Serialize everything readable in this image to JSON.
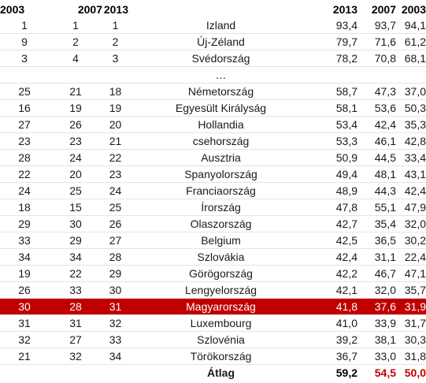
{
  "header": {
    "rank_2003": "2003",
    "rank_2007": "2007",
    "rank_2013": "2013",
    "value_2013": "2013",
    "value_2007": "2007",
    "value_2003": "2003"
  },
  "rows": [
    {
      "r2003": "1",
      "r2007": "1",
      "r2013": "1",
      "country": "Izland",
      "v2013": "93,4",
      "v2007": "93,7",
      "v2003": "94,1"
    },
    {
      "r2003": "9",
      "r2007": "2",
      "r2013": "2",
      "country": "Új-Zéland",
      "v2013": "79,7",
      "v2007": "71,6",
      "v2003": "61,2"
    },
    {
      "r2003": "3",
      "r2007": "4",
      "r2013": "3",
      "country": "Svédország",
      "v2013": "78,2",
      "v2007": "70,8",
      "v2003": "68,1"
    },
    {
      "r2003": "25",
      "r2007": "21",
      "r2013": "18",
      "country": "Németország",
      "v2013": "58,7",
      "v2007": "47,3",
      "v2003": "37,0"
    },
    {
      "r2003": "16",
      "r2007": "19",
      "r2013": "19",
      "country": "Egyesült Királyság",
      "v2013": "58,1",
      "v2007": "53,6",
      "v2003": "50,3"
    },
    {
      "r2003": "27",
      "r2007": "26",
      "r2013": "20",
      "country": "Hollandia",
      "v2013": "53,4",
      "v2007": "42,4",
      "v2003": "35,3"
    },
    {
      "r2003": "23",
      "r2007": "23",
      "r2013": "21",
      "country": "csehország",
      "v2013": "53,3",
      "v2007": "46,1",
      "v2003": "42,8"
    },
    {
      "r2003": "28",
      "r2007": "24",
      "r2013": "22",
      "country": "Ausztria",
      "v2013": "50,9",
      "v2007": "44,5",
      "v2003": "33,4"
    },
    {
      "r2003": "22",
      "r2007": "20",
      "r2013": "23",
      "country": "Spanyolország",
      "v2013": "49,4",
      "v2007": "48,1",
      "v2003": "43,1"
    },
    {
      "r2003": "24",
      "r2007": "25",
      "r2013": "24",
      "country": "Franciaország",
      "v2013": "48,9",
      "v2007": "44,3",
      "v2003": "42,4"
    },
    {
      "r2003": "18",
      "r2007": "15",
      "r2013": "25",
      "country": "Írország",
      "v2013": "47,8",
      "v2007": "55,1",
      "v2003": "47,9"
    },
    {
      "r2003": "29",
      "r2007": "30",
      "r2013": "26",
      "country": "Olaszország",
      "v2013": "42,7",
      "v2007": "35,4",
      "v2003": "32,0"
    },
    {
      "r2003": "33",
      "r2007": "29",
      "r2013": "27",
      "country": "Belgium",
      "v2013": "42,5",
      "v2007": "36,5",
      "v2003": "30,2"
    },
    {
      "r2003": "34",
      "r2007": "34",
      "r2013": "28",
      "country": "Szlovákia",
      "v2013": "42,4",
      "v2007": "31,1",
      "v2003": "22,4"
    },
    {
      "r2003": "19",
      "r2007": "22",
      "r2013": "29",
      "country": "Görögország",
      "v2013": "42,2",
      "v2007": "46,7",
      "v2003": "47,1"
    },
    {
      "r2003": "26",
      "r2007": "33",
      "r2013": "30",
      "country": "Lengyelország",
      "v2013": "42,1",
      "v2007": "32,0",
      "v2003": "35,7"
    },
    {
      "r2003": "30",
      "r2007": "28",
      "r2013": "31",
      "country": "Magyarország",
      "v2013": "41,8",
      "v2007": "37,6",
      "v2003": "31,9"
    },
    {
      "r2003": "31",
      "r2007": "31",
      "r2013": "32",
      "country": "Luxembourg",
      "v2013": "41,0",
      "v2007": "33,9",
      "v2003": "31,7"
    },
    {
      "r2003": "32",
      "r2007": "27",
      "r2013": "33",
      "country": "Szlovénia",
      "v2013": "39,2",
      "v2007": "38,1",
      "v2003": "30,3"
    },
    {
      "r2003": "21",
      "r2007": "32",
      "r2013": "34",
      "country": "Törökország",
      "v2013": "36,7",
      "v2007": "33,0",
      "v2003": "31,8"
    }
  ],
  "ellipsis": "…",
  "footer": {
    "label": "Átlag",
    "v2013": "59,2",
    "v2007": "54,5",
    "v2003": "50,0"
  },
  "colors": {
    "highlight_row": "#c00000",
    "highlight_text": "#ffffff",
    "average_accent": "#c00000"
  }
}
